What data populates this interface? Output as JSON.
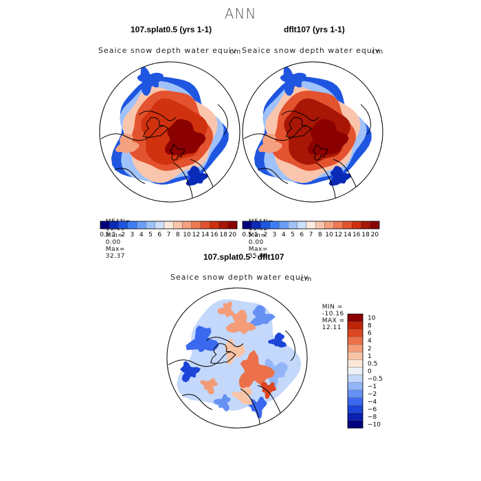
{
  "title": "ANN",
  "colors": {
    "abs_scale": [
      "#00007f",
      "#0a2bb8",
      "#1f56e0",
      "#3d7cf2",
      "#6b9ff7",
      "#9fc2fa",
      "#cde0fb",
      "#fbe9dd",
      "#f9c6ad",
      "#f5a07f",
      "#ef7a56",
      "#e4532f",
      "#d0310f",
      "#a81606",
      "#8b0000"
    ],
    "diff_scale": [
      "#00007f",
      "#0b1fb0",
      "#1d44d8",
      "#3a68ee",
      "#6590f4",
      "#93b5f8",
      "#c3d8fb",
      "#eef0f7",
      "#fbe8d9",
      "#f8c4a6",
      "#f49c77",
      "#ec714a",
      "#dd4621",
      "#be2407",
      "#8b0000"
    ]
  },
  "panels": [
    {
      "title": "107.splat0.5 (yrs 1-1)",
      "variable": "Seaice snow depth water equiv",
      "units": "cm",
      "stats": {
        "mean_label": "MEAN=",
        "mean": "11.00",
        "min_label": "Min=",
        "min": "0.00",
        "max_label": "Max=",
        "max": "32.37"
      }
    },
    {
      "title": "dflt107 (yrs 1-1)",
      "variable": "Seaice snow depth water equiv",
      "units": "cm",
      "stats": {
        "mean_label": "MEAN=",
        "mean": "11.02",
        "min_label": "Min=",
        "min": "0.00",
        "max_label": "Max=",
        "max": "35.86"
      }
    },
    {
      "title": "107.splat0.5 - dflt107",
      "variable": "Seaice snow depth water equiv",
      "units": "cm",
      "stats": {
        "min_label": "MIN =",
        "min": "-10.16",
        "max_label": "MAX =",
        "max": "12.11"
      }
    }
  ],
  "colorbar_abs": {
    "labels": [
      "0.5",
      "1",
      "2",
      "3",
      "4",
      "5",
      "6",
      "7",
      "8",
      "10",
      "12",
      "14",
      "16",
      "18",
      "20"
    ]
  },
  "colorbar_diff": {
    "labels": [
      "10",
      "8",
      "6",
      "4",
      "2",
      "1",
      "0.5",
      "0",
      "-0.5",
      "-1",
      "-2",
      "-4",
      "-6",
      "-8",
      "-10"
    ]
  },
  "chart_data": [
    {
      "type": "heatmap",
      "title": "107.splat0.5 (yrs 1-1)",
      "subtitle": "Seaice snow depth water equiv",
      "units": "cm",
      "mean": 11.0,
      "min": 0.0,
      "max": 32.37,
      "levels": [
        0.5,
        1,
        2,
        3,
        4,
        5,
        6,
        7,
        8,
        10,
        12,
        14,
        16,
        18,
        20
      ]
    },
    {
      "type": "heatmap",
      "title": "dflt107 (yrs 1-1)",
      "subtitle": "Seaice snow depth water equiv",
      "units": "cm",
      "mean": 11.02,
      "min": 0.0,
      "max": 35.86,
      "levels": [
        0.5,
        1,
        2,
        3,
        4,
        5,
        6,
        7,
        8,
        10,
        12,
        14,
        16,
        18,
        20
      ]
    },
    {
      "type": "heatmap",
      "title": "107.splat0.5 - dflt107",
      "subtitle": "Seaice snow depth water equiv",
      "units": "cm",
      "min": -10.16,
      "max": 12.11,
      "levels": [
        -10,
        -8,
        -6,
        -4,
        -2,
        -1,
        -0.5,
        0,
        0.5,
        1,
        2,
        4,
        6,
        8,
        10
      ]
    }
  ]
}
